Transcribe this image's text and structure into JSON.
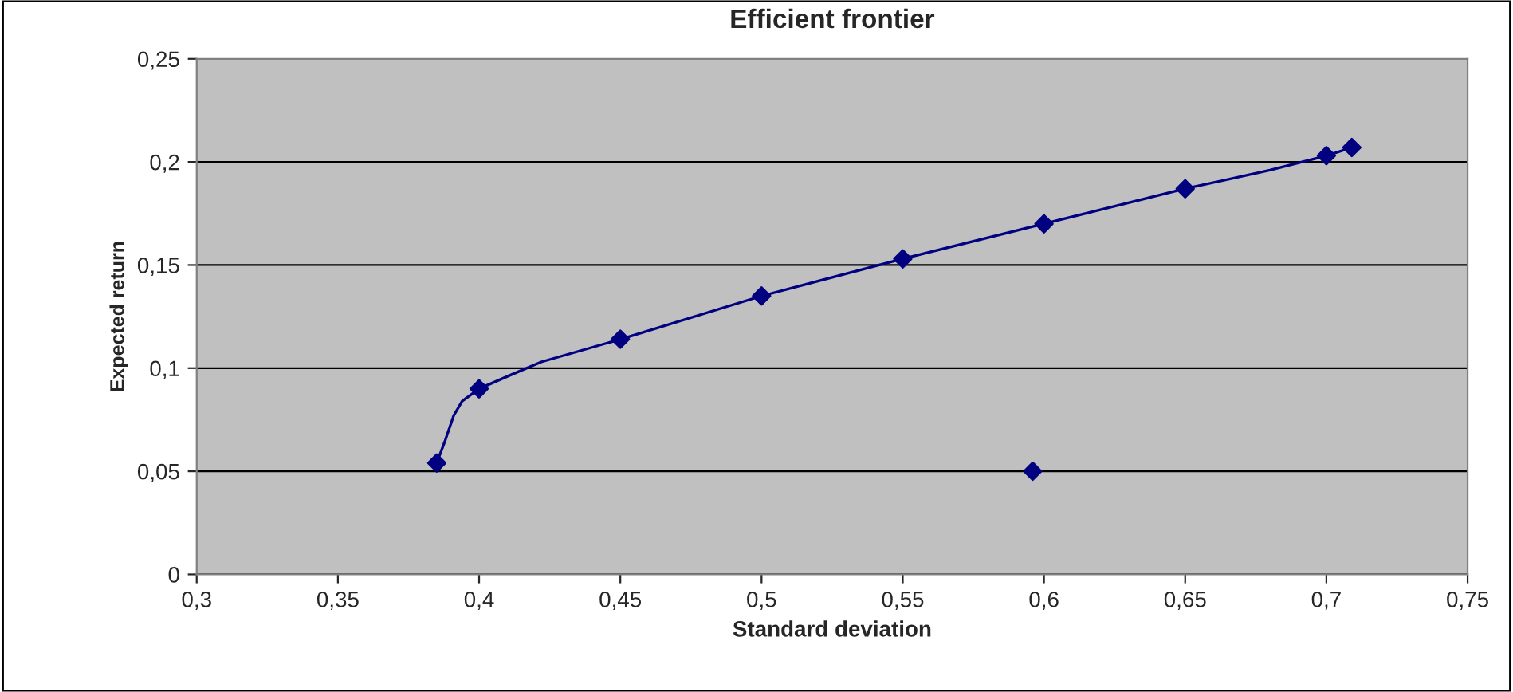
{
  "chart_data": {
    "type": "line",
    "title": "Efficient frontier",
    "xlabel": "Standard deviation",
    "ylabel": "Expected return",
    "xlim": [
      0.3,
      0.75
    ],
    "xticks": [
      {
        "value": 0.3,
        "label": "0,3"
      },
      {
        "value": 0.35,
        "label": "0,35"
      },
      {
        "value": 0.4,
        "label": "0,4"
      },
      {
        "value": 0.45,
        "label": "0,45"
      },
      {
        "value": 0.5,
        "label": "0,5"
      },
      {
        "value": 0.55,
        "label": "0,55"
      },
      {
        "value": 0.6,
        "label": "0,6"
      },
      {
        "value": 0.65,
        "label": "0,65"
      },
      {
        "value": 0.7,
        "label": "0,7"
      },
      {
        "value": 0.75,
        "label": "0,75"
      }
    ],
    "ylim": [
      0,
      0.25
    ],
    "yticks": [
      {
        "value": 0,
        "label": "0"
      },
      {
        "value": 0.05,
        "label": "0,05"
      },
      {
        "value": 0.1,
        "label": "0,1"
      },
      {
        "value": 0.15,
        "label": "0,15"
      },
      {
        "value": 0.2,
        "label": "0,2"
      },
      {
        "value": 0.25,
        "label": "0,25"
      }
    ],
    "grid": "y",
    "legend": false,
    "series": [
      {
        "color": "#000080",
        "marker": "none",
        "x": [
          0.385,
          0.388,
          0.391,
          0.394,
          0.4,
          0.41,
          0.422,
          0.45,
          0.5,
          0.55,
          0.6,
          0.65,
          0.68,
          0.7,
          0.709
        ],
        "values": [
          0.054,
          0.065,
          0.077,
          0.084,
          0.09,
          0.096,
          0.103,
          0.114,
          0.135,
          0.153,
          0.17,
          0.187,
          0.196,
          0.203,
          0.207
        ]
      },
      {
        "type": "scatter",
        "color": "#000080",
        "marker": "diamond",
        "x": [
          0.385,
          0.4,
          0.45,
          0.5,
          0.55,
          0.6,
          0.65,
          0.7,
          0.709
        ],
        "values": [
          0.054,
          0.09,
          0.114,
          0.135,
          0.153,
          0.17,
          0.187,
          0.203,
          0.207
        ]
      },
      {
        "type": "scatter",
        "color": "#000080",
        "marker": "diamond",
        "x": [
          0.596
        ],
        "values": [
          0.05
        ]
      }
    ]
  }
}
